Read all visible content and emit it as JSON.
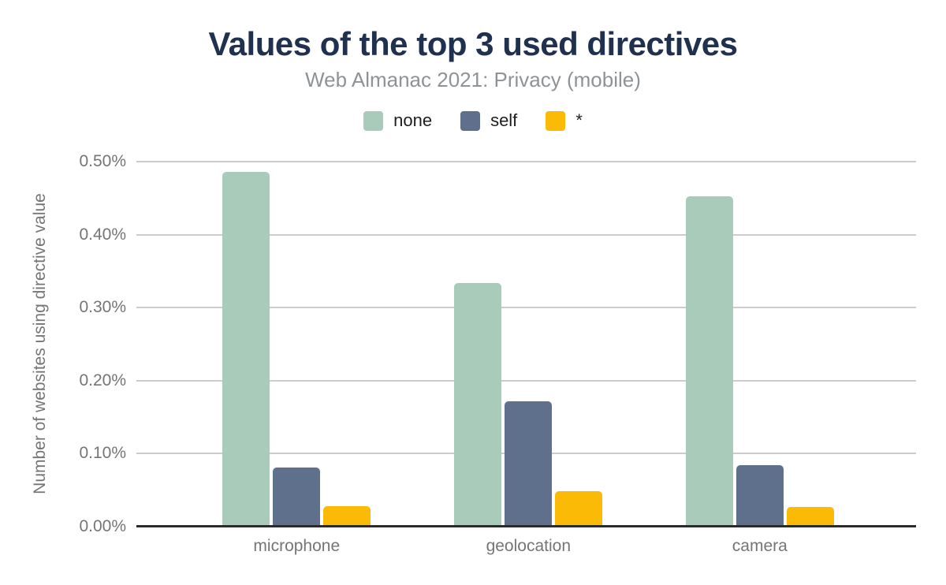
{
  "colors": {
    "title": "#20314F",
    "subtitle": "#8F9396",
    "axis_text": "#757575",
    "gridline": "#CCCCCC",
    "baseline": "#2B2B2B",
    "legend_text": "#1E1E1E",
    "background": "#FFFFFF"
  },
  "chart_data": {
    "type": "bar",
    "title": "Values of the top 3 used directives",
    "subtitle": "Web Almanac 2021: Privacy (mobile)",
    "ylabel": "Number of websites using directive value",
    "xlabel": "",
    "categories": [
      "microphone",
      "geolocation",
      "camera"
    ],
    "series": [
      {
        "name": "none",
        "color": "#A9CBBA",
        "values_pct": [
          0.486,
          0.334,
          0.453
        ]
      },
      {
        "name": "self",
        "color": "#5F708D",
        "values_pct": [
          0.081,
          0.172,
          0.084
        ]
      },
      {
        "name": "*",
        "color": "#FBBA05",
        "values_pct": [
          0.028,
          0.049,
          0.027
        ]
      }
    ],
    "y_ticks": [
      "0.50%",
      "0.40%",
      "0.30%",
      "0.20%",
      "0.10%",
      "0.00%"
    ],
    "ylim_pct": [
      0,
      0.5
    ],
    "grid": true,
    "legend_position": "top"
  }
}
